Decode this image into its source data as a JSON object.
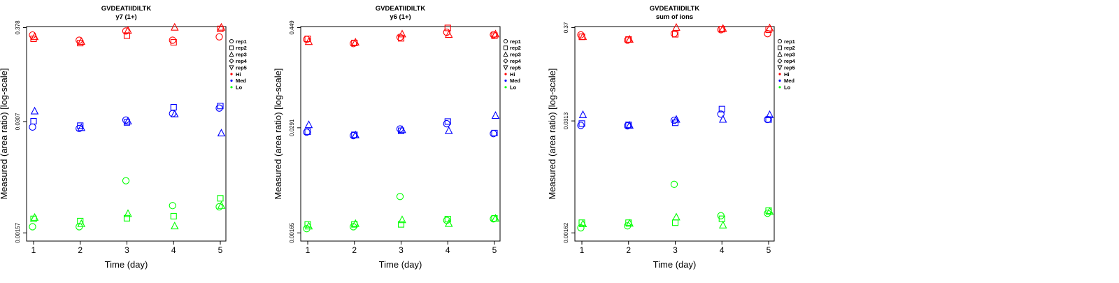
{
  "chart_data": [
    {
      "type": "scatter",
      "title": "GVDEATIIDILTK",
      "subtitle": "y7 (1+)",
      "xlabel": "Time (day)",
      "ylabel": "Measured (area ratio) [log-scale]",
      "y_scale": "log",
      "ylim": [
        0.00157,
        0.378
      ],
      "yticks": [
        "0.00157",
        "0.0307",
        "0.378"
      ],
      "x_ticks": [
        "1",
        "2",
        "3",
        "4",
        "5"
      ],
      "legend": {
        "placement": "right",
        "entries": [
          {
            "label": "rep1",
            "marker": "circle"
          },
          {
            "label": "rep2",
            "marker": "square"
          },
          {
            "label": "rep3",
            "marker": "triangle-up"
          },
          {
            "label": "rep4",
            "marker": "diamond"
          },
          {
            "label": "rep5",
            "marker": "triangle-down"
          },
          {
            "label": "Hi",
            "marker": "dot",
            "color": "#ff0000"
          },
          {
            "label": "Med",
            "marker": "dot",
            "color": "#0000ff"
          },
          {
            "label": "Lo",
            "marker": "dot",
            "color": "#00ff00"
          }
        ]
      },
      "series": [
        {
          "level": "Hi",
          "color": "#ff0000",
          "points": [
            {
              "x": 1,
              "rep": "rep1",
              "y": 0.31
            },
            {
              "x": 1,
              "rep": "rep2",
              "y": 0.28
            },
            {
              "x": 1,
              "rep": "rep3",
              "y": 0.295
            },
            {
              "x": 2,
              "rep": "rep1",
              "y": 0.27
            },
            {
              "x": 2,
              "rep": "rep2",
              "y": 0.25
            },
            {
              "x": 2,
              "rep": "rep3",
              "y": 0.26
            },
            {
              "x": 3,
              "rep": "rep1",
              "y": 0.345
            },
            {
              "x": 3,
              "rep": "rep2",
              "y": 0.305
            },
            {
              "x": 3,
              "rep": "rep3",
              "y": 0.35
            },
            {
              "x": 4,
              "rep": "rep1",
              "y": 0.27
            },
            {
              "x": 4,
              "rep": "rep2",
              "y": 0.255
            },
            {
              "x": 4,
              "rep": "rep3",
              "y": 0.38
            },
            {
              "x": 5,
              "rep": "rep1",
              "y": 0.295
            },
            {
              "x": 5,
              "rep": "rep2",
              "y": 0.365
            },
            {
              "x": 5,
              "rep": "rep3",
              "y": 0.38
            }
          ]
        },
        {
          "level": "Med",
          "color": "#0000ff",
          "points": [
            {
              "x": 1,
              "rep": "rep1",
              "y": 0.0265
            },
            {
              "x": 1,
              "rep": "rep2",
              "y": 0.031
            },
            {
              "x": 1,
              "rep": "rep3",
              "y": 0.0405
            },
            {
              "x": 2,
              "rep": "rep1",
              "y": 0.0255
            },
            {
              "x": 2,
              "rep": "rep2",
              "y": 0.0275
            },
            {
              "x": 2,
              "rep": "rep3",
              "y": 0.026
            },
            {
              "x": 3,
              "rep": "rep1",
              "y": 0.032
            },
            {
              "x": 3,
              "rep": "rep2",
              "y": 0.03
            },
            {
              "x": 3,
              "rep": "rep3",
              "y": 0.031
            },
            {
              "x": 4,
              "rep": "rep1",
              "y": 0.038
            },
            {
              "x": 4,
              "rep": "rep2",
              "y": 0.045
            },
            {
              "x": 4,
              "rep": "rep3",
              "y": 0.0375
            },
            {
              "x": 5,
              "rep": "rep1",
              "y": 0.044
            },
            {
              "x": 5,
              "rep": "rep2",
              "y": 0.0465
            },
            {
              "x": 5,
              "rep": "rep3",
              "y": 0.0225
            }
          ]
        },
        {
          "level": "Lo",
          "color": "#00ff00",
          "points": [
            {
              "x": 1,
              "rep": "rep1",
              "y": 0.00185
            },
            {
              "x": 1,
              "rep": "rep2",
              "y": 0.00228
            },
            {
              "x": 1,
              "rep": "rep3",
              "y": 0.00236
            },
            {
              "x": 2,
              "rep": "rep1",
              "y": 0.00185
            },
            {
              "x": 2,
              "rep": "rep2",
              "y": 0.00215
            },
            {
              "x": 2,
              "rep": "rep3",
              "y": 0.002
            },
            {
              "x": 3,
              "rep": "rep1",
              "y": 0.00632
            },
            {
              "x": 3,
              "rep": "rep2",
              "y": 0.00232
            },
            {
              "x": 3,
              "rep": "rep3",
              "y": 0.00262
            },
            {
              "x": 4,
              "rep": "rep1",
              "y": 0.00325
            },
            {
              "x": 4,
              "rep": "rep2",
              "y": 0.00245
            },
            {
              "x": 4,
              "rep": "rep3",
              "y": 0.00188
            },
            {
              "x": 5,
              "rep": "rep1",
              "y": 0.00315
            },
            {
              "x": 5,
              "rep": "rep2",
              "y": 0.00395
            },
            {
              "x": 5,
              "rep": "rep3",
              "y": 0.00325
            }
          ]
        }
      ]
    },
    {
      "type": "scatter",
      "title": "GVDEATIIDILTK",
      "subtitle": "y6 (1+)",
      "xlabel": "Time (day)",
      "ylabel": "Measured (area ratio) [log-scale]",
      "y_scale": "log",
      "ylim": [
        0.00165,
        0.449
      ],
      "yticks": [
        "0.00165",
        "0.0291",
        "0.449"
      ],
      "x_ticks": [
        "1",
        "2",
        "3",
        "4",
        "5"
      ],
      "legend": {
        "placement": "right",
        "entries": [
          {
            "label": "rep1",
            "marker": "circle"
          },
          {
            "label": "rep2",
            "marker": "square"
          },
          {
            "label": "rep3",
            "marker": "triangle-up"
          },
          {
            "label": "rep4",
            "marker": "diamond"
          },
          {
            "label": "rep5",
            "marker": "triangle-down"
          },
          {
            "label": "Hi",
            "marker": "dot",
            "color": "#ff0000"
          },
          {
            "label": "Med",
            "marker": "dot",
            "color": "#0000ff"
          },
          {
            "label": "Lo",
            "marker": "dot",
            "color": "#00ff00"
          }
        ]
      },
      "series": [
        {
          "level": "Hi",
          "color": "#ff0000",
          "points": [
            {
              "x": 1,
              "rep": "rep1",
              "y": 0.325
            },
            {
              "x": 1,
              "rep": "rep2",
              "y": 0.33
            },
            {
              "x": 1,
              "rep": "rep3",
              "y": 0.305
            },
            {
              "x": 2,
              "rep": "rep1",
              "y": 0.29
            },
            {
              "x": 2,
              "rep": "rep2",
              "y": 0.295
            },
            {
              "x": 2,
              "rep": "rep3",
              "y": 0.3
            },
            {
              "x": 3,
              "rep": "rep1",
              "y": 0.345
            },
            {
              "x": 3,
              "rep": "rep2",
              "y": 0.335
            },
            {
              "x": 3,
              "rep": "rep3",
              "y": 0.375
            },
            {
              "x": 4,
              "rep": "rep1",
              "y": 0.395
            },
            {
              "x": 4,
              "rep": "rep2",
              "y": 0.445
            },
            {
              "x": 4,
              "rep": "rep3",
              "y": 0.37
            },
            {
              "x": 5,
              "rep": "rep1",
              "y": 0.37
            },
            {
              "x": 5,
              "rep": "rep2",
              "y": 0.36
            },
            {
              "x": 5,
              "rep": "rep3",
              "y": 0.375
            }
          ]
        },
        {
          "level": "Med",
          "color": "#0000ff",
          "points": [
            {
              "x": 1,
              "rep": "rep1",
              "y": 0.0258
            },
            {
              "x": 1,
              "rep": "rep2",
              "y": 0.0262
            },
            {
              "x": 1,
              "rep": "rep3",
              "y": 0.0315
            },
            {
              "x": 2,
              "rep": "rep1",
              "y": 0.0235
            },
            {
              "x": 2,
              "rep": "rep2",
              "y": 0.024
            },
            {
              "x": 2,
              "rep": "rep3",
              "y": 0.0238
            },
            {
              "x": 3,
              "rep": "rep1",
              "y": 0.0282
            },
            {
              "x": 3,
              "rep": "rep2",
              "y": 0.0268
            },
            {
              "x": 3,
              "rep": "rep3",
              "y": 0.0275
            },
            {
              "x": 4,
              "rep": "rep1",
              "y": 0.0325
            },
            {
              "x": 4,
              "rep": "rep2",
              "y": 0.0345
            },
            {
              "x": 4,
              "rep": "rep3",
              "y": 0.0268
            },
            {
              "x": 5,
              "rep": "rep1",
              "y": 0.0248
            },
            {
              "x": 5,
              "rep": "rep2",
              "y": 0.0252
            },
            {
              "x": 5,
              "rep": "rep3",
              "y": 0.0405
            }
          ]
        },
        {
          "level": "Lo",
          "color": "#00ff00",
          "points": [
            {
              "x": 1,
              "rep": "rep1",
              "y": 0.00185
            },
            {
              "x": 1,
              "rep": "rep2",
              "y": 0.00208
            },
            {
              "x": 1,
              "rep": "rep3",
              "y": 0.00198
            },
            {
              "x": 2,
              "rep": "rep1",
              "y": 0.00195
            },
            {
              "x": 2,
              "rep": "rep2",
              "y": 0.00208
            },
            {
              "x": 2,
              "rep": "rep3",
              "y": 0.00212
            },
            {
              "x": 3,
              "rep": "rep1",
              "y": 0.00445
            },
            {
              "x": 3,
              "rep": "rep2",
              "y": 0.00208
            },
            {
              "x": 3,
              "rep": "rep3",
              "y": 0.00235
            },
            {
              "x": 4,
              "rep": "rep1",
              "y": 0.00232
            },
            {
              "x": 4,
              "rep": "rep2",
              "y": 0.0024
            },
            {
              "x": 4,
              "rep": "rep3",
              "y": 0.00212
            },
            {
              "x": 5,
              "rep": "rep1",
              "y": 0.00242
            },
            {
              "x": 5,
              "rep": "rep2",
              "y": 0.00245
            },
            {
              "x": 5,
              "rep": "rep3",
              "y": 0.00245
            }
          ]
        }
      ]
    },
    {
      "type": "scatter",
      "title": "GVDEATIIDILTK",
      "subtitle": "sum of ions",
      "xlabel": "Time (day)",
      "ylabel": "Measured (area ratio) [log-scale]",
      "y_scale": "log",
      "ylim": [
        0.00162,
        0.37
      ],
      "yticks": [
        "0.00162",
        "0.0313",
        "0.37"
      ],
      "x_ticks": [
        "1",
        "2",
        "3",
        "4",
        "5"
      ],
      "legend": {
        "placement": "right",
        "entries": [
          {
            "label": "rep1",
            "marker": "circle"
          },
          {
            "label": "rep2",
            "marker": "square"
          },
          {
            "label": "rep3",
            "marker": "triangle-up"
          },
          {
            "label": "rep4",
            "marker": "diamond"
          },
          {
            "label": "rep5",
            "marker": "triangle-down"
          },
          {
            "label": "Hi",
            "marker": "dot",
            "color": "#ff0000"
          },
          {
            "label": "Med",
            "marker": "dot",
            "color": "#0000ff"
          },
          {
            "label": "Lo",
            "marker": "dot",
            "color": "#00ff00"
          }
        ]
      },
      "series": [
        {
          "level": "Hi",
          "color": "#ff0000",
          "points": [
            {
              "x": 1,
              "rep": "rep1",
              "y": 0.305
            },
            {
              "x": 1,
              "rep": "rep2",
              "y": 0.29
            },
            {
              "x": 1,
              "rep": "rep3",
              "y": 0.29
            },
            {
              "x": 2,
              "rep": "rep1",
              "y": 0.265
            },
            {
              "x": 2,
              "rep": "rep2",
              "y": 0.27
            },
            {
              "x": 2,
              "rep": "rep3",
              "y": 0.27
            },
            {
              "x": 3,
              "rep": "rep1",
              "y": 0.315
            },
            {
              "x": 3,
              "rep": "rep2",
              "y": 0.31
            },
            {
              "x": 3,
              "rep": "rep3",
              "y": 0.37
            },
            {
              "x": 4,
              "rep": "rep1",
              "y": 0.35
            },
            {
              "x": 4,
              "rep": "rep2",
              "y": 0.355
            },
            {
              "x": 4,
              "rep": "rep3",
              "y": 0.36
            },
            {
              "x": 5,
              "rep": "rep1",
              "y": 0.315
            },
            {
              "x": 5,
              "rep": "rep2",
              "y": 0.35
            },
            {
              "x": 5,
              "rep": "rep3",
              "y": 0.365
            }
          ]
        },
        {
          "level": "Med",
          "color": "#0000ff",
          "points": [
            {
              "x": 1,
              "rep": "rep1",
              "y": 0.0278
            },
            {
              "x": 1,
              "rep": "rep2",
              "y": 0.0292
            },
            {
              "x": 1,
              "rep": "rep3",
              "y": 0.0368
            },
            {
              "x": 2,
              "rep": "rep1",
              "y": 0.0275
            },
            {
              "x": 2,
              "rep": "rep2",
              "y": 0.0282
            },
            {
              "x": 2,
              "rep": "rep3",
              "y": 0.0278
            },
            {
              "x": 3,
              "rep": "rep1",
              "y": 0.0318
            },
            {
              "x": 3,
              "rep": "rep2",
              "y": 0.0298
            },
            {
              "x": 3,
              "rep": "rep3",
              "y": 0.0325
            },
            {
              "x": 4,
              "rep": "rep1",
              "y": 0.0375
            },
            {
              "x": 4,
              "rep": "rep2",
              "y": 0.0428
            },
            {
              "x": 4,
              "rep": "rep3",
              "y": 0.0325
            },
            {
              "x": 5,
              "rep": "rep1",
              "y": 0.0325
            },
            {
              "x": 5,
              "rep": "rep2",
              "y": 0.0325
            },
            {
              "x": 5,
              "rep": "rep3",
              "y": 0.0368
            }
          ]
        },
        {
          "level": "Lo",
          "color": "#00ff00",
          "points": [
            {
              "x": 1,
              "rep": "rep1",
              "y": 0.00185
            },
            {
              "x": 1,
              "rep": "rep2",
              "y": 0.00212
            },
            {
              "x": 1,
              "rep": "rep3",
              "y": 0.00205
            },
            {
              "x": 2,
              "rep": "rep1",
              "y": 0.00195
            },
            {
              "x": 2,
              "rep": "rep2",
              "y": 0.00212
            },
            {
              "x": 2,
              "rep": "rep3",
              "y": 0.00208
            },
            {
              "x": 3,
              "rep": "rep1",
              "y": 0.00585
            },
            {
              "x": 3,
              "rep": "rep2",
              "y": 0.00212
            },
            {
              "x": 3,
              "rep": "rep3",
              "y": 0.00245
            },
            {
              "x": 4,
              "rep": "rep1",
              "y": 0.00255
            },
            {
              "x": 4,
              "rep": "rep2",
              "y": 0.00235
            },
            {
              "x": 4,
              "rep": "rep3",
              "y": 0.00198
            },
            {
              "x": 5,
              "rep": "rep1",
              "y": 0.00272
            },
            {
              "x": 5,
              "rep": "rep2",
              "y": 0.00292
            },
            {
              "x": 5,
              "rep": "rep3",
              "y": 0.00285
            }
          ]
        }
      ]
    }
  ]
}
